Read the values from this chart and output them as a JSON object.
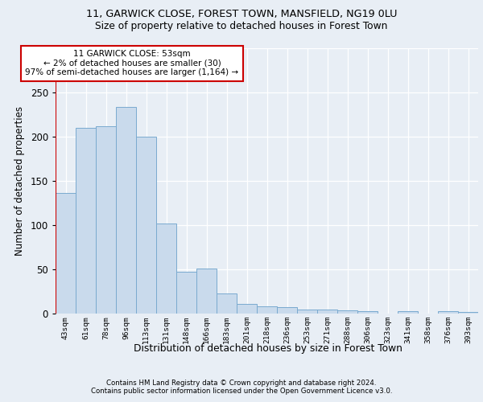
{
  "title1": "11, GARWICK CLOSE, FOREST TOWN, MANSFIELD, NG19 0LU",
  "title2": "Size of property relative to detached houses in Forest Town",
  "xlabel": "Distribution of detached houses by size in Forest Town",
  "ylabel": "Number of detached properties",
  "footer1": "Contains HM Land Registry data © Crown copyright and database right 2024.",
  "footer2": "Contains public sector information licensed under the Open Government Licence v3.0.",
  "annotation_line1": "11 GARWICK CLOSE: 53sqm",
  "annotation_line2": "← 2% of detached houses are smaller (30)",
  "annotation_line3": "97% of semi-detached houses are larger (1,164) →",
  "bar_color": "#c9daec",
  "bar_edge_color": "#7aaacf",
  "red_line_color": "#cc0000",
  "annotation_box_edge": "#cc0000",
  "annotation_box_face": "#ffffff",
  "bg_color": "#e8eef5",
  "categories": [
    "43sqm",
    "61sqm",
    "78sqm",
    "96sqm",
    "113sqm",
    "131sqm",
    "148sqm",
    "166sqm",
    "183sqm",
    "201sqm",
    "218sqm",
    "236sqm",
    "253sqm",
    "271sqm",
    "288sqm",
    "306sqm",
    "323sqm",
    "341sqm",
    "358sqm",
    "376sqm",
    "393sqm"
  ],
  "values": [
    136,
    210,
    212,
    234,
    200,
    102,
    47,
    51,
    23,
    11,
    8,
    7,
    5,
    5,
    4,
    3,
    0,
    3,
    0,
    3,
    2
  ],
  "ylim": [
    0,
    300
  ],
  "yticks": [
    0,
    50,
    100,
    150,
    200,
    250,
    300
  ],
  "figsize": [
    6.0,
    5.0
  ],
  "dpi": 100
}
